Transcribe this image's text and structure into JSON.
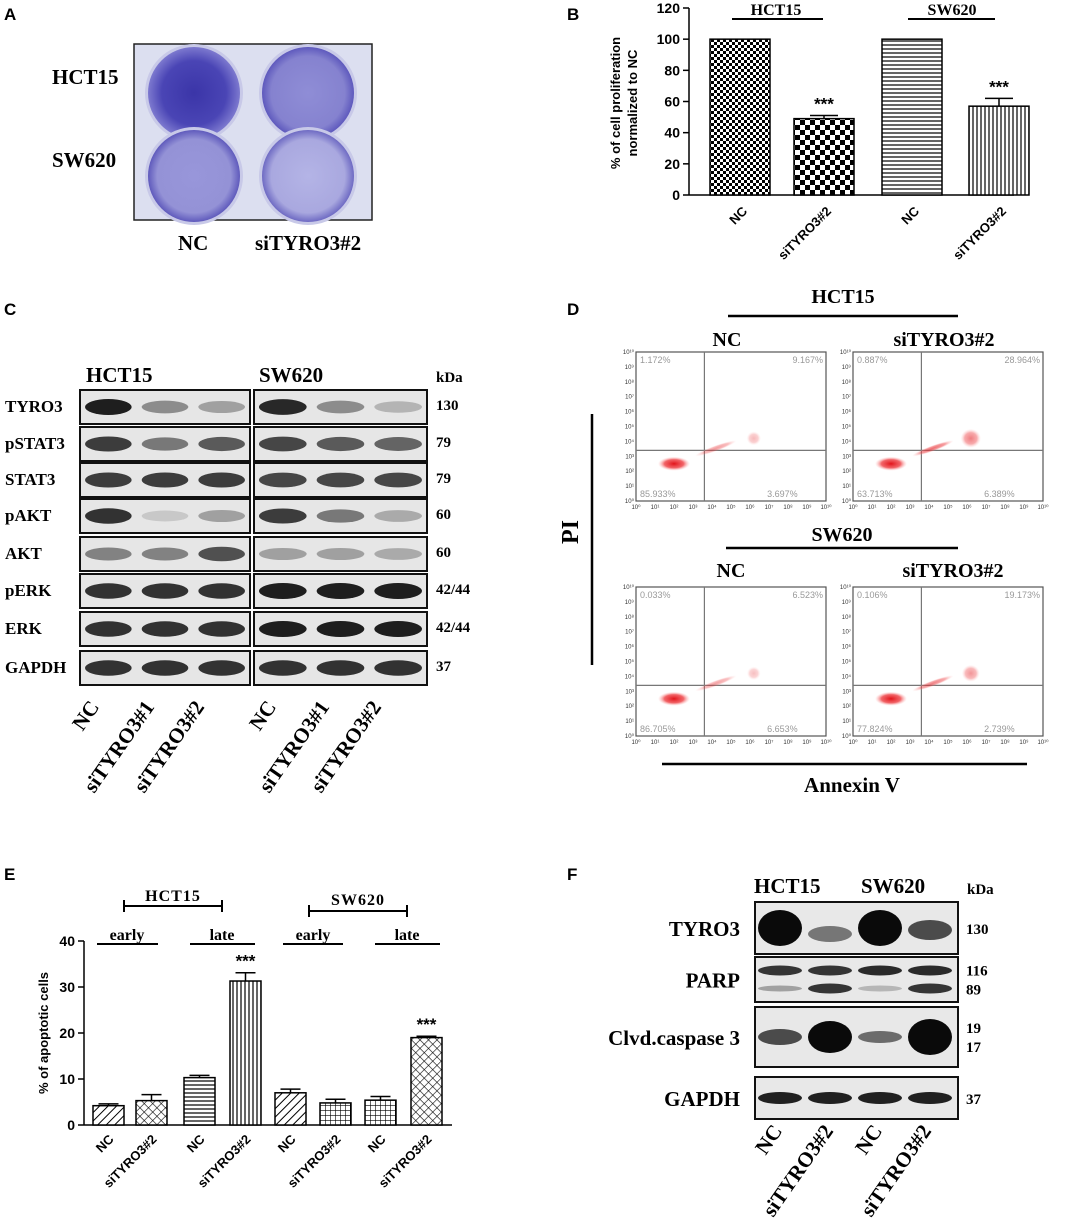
{
  "panels": {
    "A": {
      "letter": "A",
      "row_labels": [
        "HCT15",
        "SW620"
      ],
      "col_labels": [
        "NC",
        "siTYRO3#2"
      ]
    },
    "B": {
      "letter": "B",
      "ylabel_line1": "% of cell proliferation",
      "ylabel_line2": "normalized to NC",
      "groups": [
        "HCT15",
        "SW620"
      ]
    },
    "C": {
      "letter": "C",
      "cell_lines": [
        "HCT15",
        "SW620"
      ],
      "kda_label": "kDa",
      "proteins": [
        {
          "name": "TYRO3",
          "kda": "130"
        },
        {
          "name": "pSTAT3",
          "kda": "79"
        },
        {
          "name": "STAT3",
          "kda": "79"
        },
        {
          "name": "pAKT",
          "kda": "60"
        },
        {
          "name": "AKT",
          "kda": "60"
        },
        {
          "name": "pERK",
          "kda": "42/44"
        },
        {
          "name": "ERK",
          "kda": "42/44"
        },
        {
          "name": "GAPDH",
          "kda": "37"
        }
      ],
      "lanes": [
        "NC",
        "siTYRO3#1",
        "siTYRO3#2",
        "NC",
        "siTYRO3#1",
        "siTYRO3#2"
      ]
    },
    "D": {
      "letter": "D",
      "groups": [
        "HCT15",
        "SW620"
      ],
      "conditions": [
        "NC",
        "siTYRO3#2"
      ],
      "ylabel": "PI",
      "xlabel": "Annexin V",
      "plots": [
        {
          "ul": "1.172%",
          "ur": "9.167%",
          "ll": "85.933%",
          "lr": "3.697%"
        },
        {
          "ul": "0.887%",
          "ur": "28.964%",
          "ll": "63.713%",
          "lr": "6.389%"
        },
        {
          "ul": "0.033%",
          "ur": "6.523%",
          "ll": "86.705%",
          "lr": "6.653%"
        },
        {
          "ul": "0.106%",
          "ur": "19.173%",
          "ll": "77.824%",
          "lr": "2.739%"
        }
      ],
      "axis_ticks": [
        "10⁰",
        "10¹",
        "10²",
        "10³",
        "10⁴",
        "10⁵",
        "10⁶",
        "10⁷",
        "10⁸",
        "10⁹",
        "10¹⁰"
      ]
    },
    "E": {
      "letter": "E",
      "ylabel": "% of apoptotic cells",
      "groups": [
        "HCT15",
        "SW620"
      ],
      "subgroups": [
        "early",
        "late",
        "early",
        "late"
      ]
    },
    "F": {
      "letter": "F",
      "cell_lines": [
        "HCT15",
        "SW620"
      ],
      "kda_label": "kDa",
      "proteins": [
        {
          "name": "TYRO3",
          "kda": [
            "130"
          ]
        },
        {
          "name": "PARP",
          "kda": [
            "116",
            "89"
          ]
        },
        {
          "name": "Clvd.caspase 3",
          "kda": [
            "19",
            "17"
          ]
        },
        {
          "name": "GAPDH",
          "kda": [
            "37"
          ]
        }
      ],
      "lanes": [
        "NC",
        "siTYRO3#2",
        "NC",
        "siTYRO3#2"
      ]
    }
  },
  "chart_data": [
    {
      "panel": "B",
      "type": "bar",
      "categories": [
        "NC",
        "siTYRO3#2",
        "NC",
        "siTYRO3#2"
      ],
      "groups": [
        "HCT15",
        "HCT15",
        "SW620",
        "SW620"
      ],
      "values": [
        100,
        49,
        100,
        57
      ],
      "errors": [
        0,
        2,
        0,
        5
      ],
      "significance": [
        "",
        "***",
        "",
        "***"
      ],
      "ylabel": "% of cell proliferation normalized to NC",
      "ylim": [
        0,
        120
      ],
      "yticks": [
        0,
        20,
        40,
        60,
        80,
        100,
        120
      ]
    },
    {
      "panel": "E",
      "type": "bar",
      "categories": [
        "NC",
        "siTYRO3#2",
        "NC",
        "siTYRO3#2",
        "NC",
        "siTYRO3#2",
        "NC",
        "siTYRO3#2"
      ],
      "values": [
        4.2,
        5.3,
        10.3,
        31.3,
        7.0,
        4.8,
        5.4,
        19.0
      ],
      "errors": [
        0.4,
        1.3,
        0.5,
        1.8,
        0.8,
        0.8,
        0.8,
        0.3
      ],
      "significance": [
        "",
        "",
        "",
        "***",
        "",
        "",
        "",
        "***"
      ],
      "ylabel": "% of apoptotic cells",
      "ylim": [
        0,
        40
      ],
      "yticks": [
        0,
        10,
        20,
        30,
        40
      ]
    }
  ]
}
